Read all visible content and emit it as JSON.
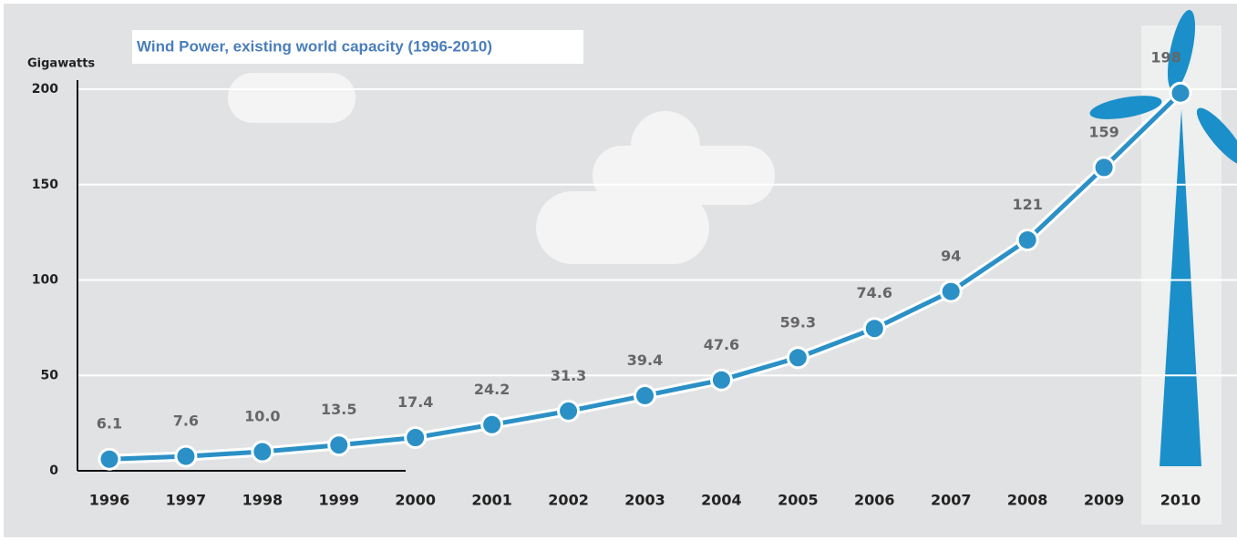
{
  "chart_data": {
    "type": "line",
    "title": "Wind Power, existing world capacity (1996-2010)",
    "y_label": "Gigawatts",
    "categories": [
      "1996",
      "1997",
      "1998",
      "1999",
      "2000",
      "2001",
      "2002",
      "2003",
      "2004",
      "2005",
      "2006",
      "2007",
      "2008",
      "2009",
      "2010"
    ],
    "values": [
      6.1,
      7.6,
      10.0,
      13.5,
      17.4,
      24.2,
      31.3,
      39.4,
      47.6,
      59.3,
      74.6,
      94,
      121,
      159,
      198
    ],
    "value_labels": [
      "6.1",
      "7.6",
      "10.0",
      "13.5",
      "17.4",
      "24.2",
      "31.3",
      "39.4",
      "47.6",
      "59.3",
      "74.6",
      "94",
      "121",
      "159",
      "198"
    ],
    "color": "#2b90c6",
    "ylim": [
      0,
      200
    ],
    "yticks": [
      0,
      50,
      100,
      150,
      200
    ],
    "grid": true
  }
}
